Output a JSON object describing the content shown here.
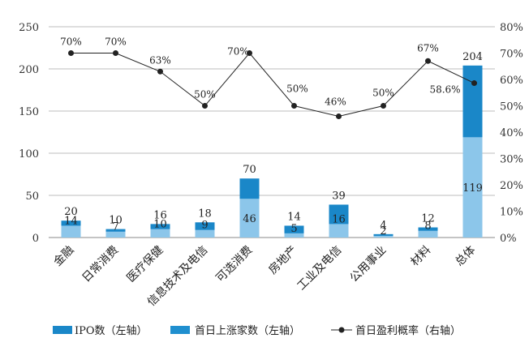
{
  "chart_data": {
    "type": "bar",
    "categories": [
      "金融",
      "日常消费",
      "医疗保健",
      "信息技术及电信",
      "可选消费",
      "房地产",
      "工业及电信",
      "公用事业",
      "材料",
      "总体"
    ],
    "series": [
      {
        "name": "IPO数（左轴）",
        "values": [
          20,
          10,
          16,
          18,
          70,
          14,
          39,
          4,
          12,
          204
        ],
        "color": "#1a87c8"
      },
      {
        "name": "首日上涨家数（左轴）",
        "values": [
          14,
          7,
          10,
          9,
          46,
          5,
          16,
          2,
          8,
          119
        ],
        "color": "#8cc6ea"
      },
      {
        "name": "首日盈利概率（右轴）",
        "type": "line",
        "axis": "right",
        "values": [
          70,
          70,
          63,
          50,
          70,
          50,
          46,
          50,
          67,
          58.6
        ],
        "labels": [
          "70%",
          "70%",
          "63%",
          "50%",
          "70%",
          "50%",
          "46%",
          "50%",
          "67%",
          "58.6%"
        ],
        "color": "#222222"
      }
    ],
    "left_axis": {
      "min": 0,
      "max": 250,
      "step": 50,
      "ticks": [
        "0",
        "50",
        "100",
        "150",
        "200",
        "250"
      ]
    },
    "right_axis": {
      "min": 0,
      "max": 80,
      "step": 10,
      "ticks": [
        "0%",
        "10%",
        "20%",
        "30%",
        "40%",
        "50%",
        "60%",
        "70%",
        "80%"
      ]
    },
    "grid": true,
    "legend": "bottom",
    "title": "",
    "xlabel": "",
    "ylabel": ""
  }
}
